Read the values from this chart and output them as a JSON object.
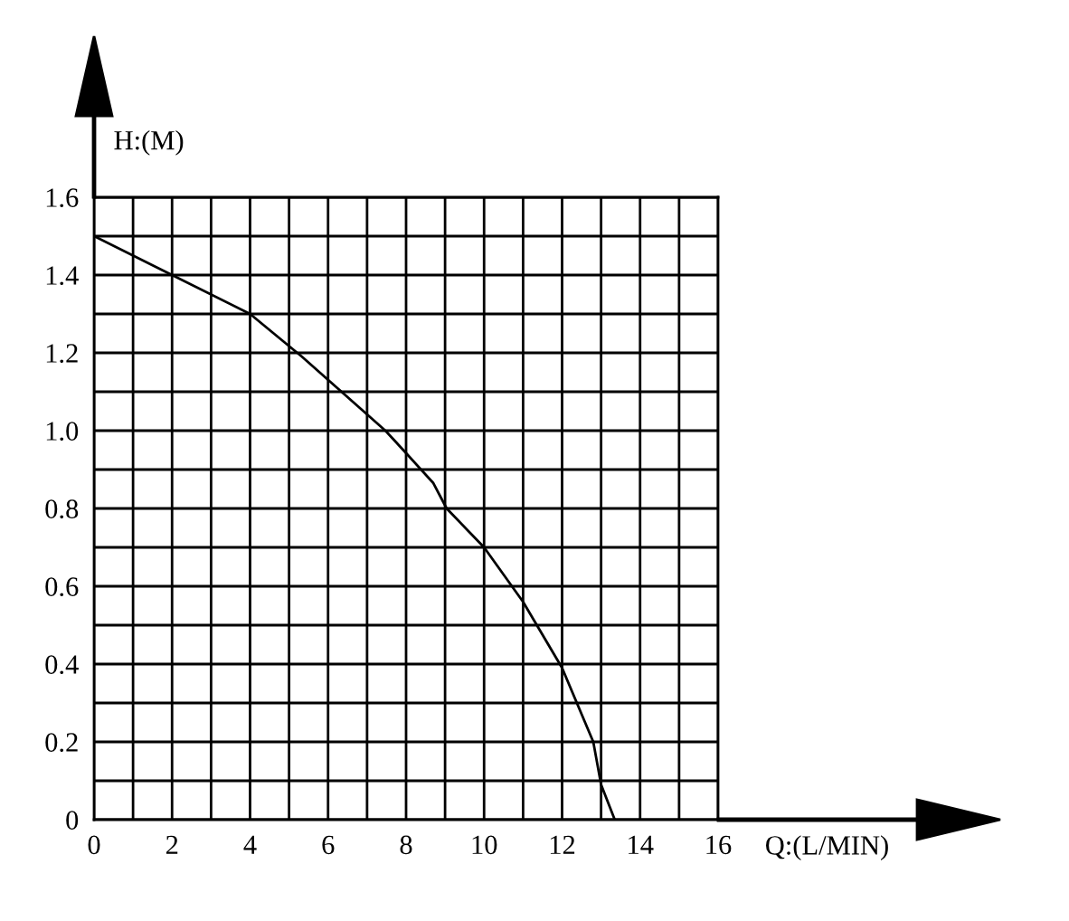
{
  "chart_data": {
    "type": "line",
    "xlabel": "Q:(L/MIN)",
    "ylabel": "H:(M)",
    "x": [
      0,
      2,
      4,
      5.33,
      7.47,
      8.02,
      8.7,
      9.04,
      10.0,
      11.0,
      12.0,
      12.8,
      13.0,
      13.35
    ],
    "series": [
      {
        "color": "#000000",
        "values": [
          1.5,
          1.4,
          1.3,
          1.19,
          1.0,
          0.94,
          0.865,
          0.8,
          0.7,
          0.56,
          0.39,
          0.2,
          0.09,
          0
        ]
      }
    ],
    "xlim": [
      0,
      16
    ],
    "ylim": [
      0,
      1.6
    ],
    "xticks": [
      0,
      {
        "value": 1,
        "label": null
      },
      2,
      {
        "value": 3,
        "label": null
      },
      4,
      {
        "value": 5,
        "label": null
      },
      6,
      {
        "value": 7,
        "label": null
      },
      8,
      {
        "value": 9,
        "label": null
      },
      10,
      {
        "value": 11,
        "label": null
      },
      12,
      {
        "value": 13,
        "label": null
      },
      14,
      {
        "value": 15,
        "label": null
      },
      16
    ],
    "yticks": [
      0,
      {
        "value": 0.1,
        "label": null
      },
      0.2,
      {
        "value": 0.3,
        "label": null
      },
      0.4,
      {
        "value": 0.5,
        "label": null
      },
      0.6,
      {
        "value": 0.7,
        "label": null
      },
      0.8,
      {
        "value": 0.9,
        "label": null
      },
      {
        "value": 1.0,
        "label": "1.0"
      },
      {
        "value": 1.1,
        "label": null
      },
      1.2,
      {
        "value": 1.3,
        "label": null
      },
      1.4,
      {
        "value": 1.5,
        "label": null
      },
      1.6
    ],
    "grid": true,
    "marker": "none",
    "line_style": "solid",
    "legend": false
  }
}
